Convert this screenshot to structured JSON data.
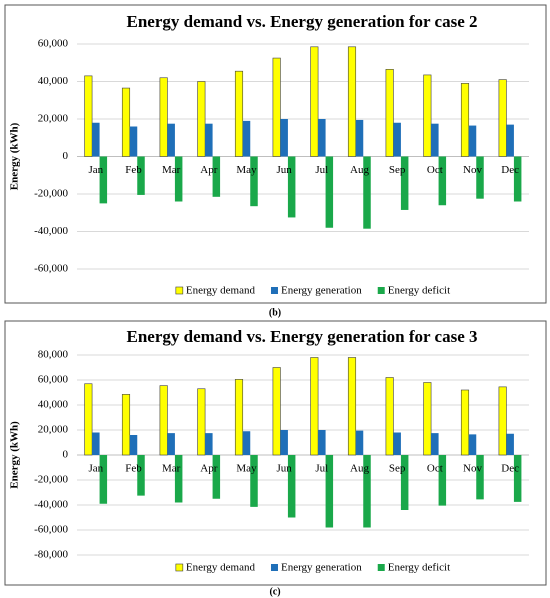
{
  "chart_data": [
    {
      "type": "bar",
      "title": "Energy demand vs. Energy generation for case 2",
      "caption": "(b)",
      "y_label": "Energy (kWh)",
      "categories": [
        "Jan",
        "Feb",
        "Mar",
        "Apr",
        "May",
        "Jun",
        "Jul",
        "Aug",
        "Sep",
        "Oct",
        "Nov",
        "Dec"
      ],
      "series": [
        {
          "name": "Energy demand",
          "color": "#ffff00",
          "values": [
            43000,
            36500,
            42000,
            40000,
            45500,
            52500,
            58500,
            58500,
            46500,
            43500,
            39000,
            41000
          ]
        },
        {
          "name": "Energy generation",
          "color": "#1f6fb8",
          "values": [
            18000,
            16000,
            17500,
            17500,
            19000,
            20000,
            20000,
            19500,
            18000,
            17500,
            16500,
            17000
          ]
        },
        {
          "name": "Energy deficit",
          "color": "#1aa84a",
          "values": [
            -25000,
            -20500,
            -24000,
            -21500,
            -26500,
            -32500,
            -38000,
            -38500,
            -28500,
            -26000,
            -22500,
            -24000
          ]
        }
      ],
      "ylim": [
        -60000,
        60000
      ],
      "yticks": [
        {
          "value": -60000,
          "label": "-60,000"
        },
        {
          "value": -40000,
          "label": "-40,000"
        },
        {
          "value": -20000,
          "label": "-20,000"
        },
        0,
        {
          "value": 20000,
          "label": "20,000"
        },
        {
          "value": 40000,
          "label": "40,000"
        },
        {
          "value": 60000,
          "label": "60,000"
        }
      ],
      "grid": true,
      "legend": "bottom"
    },
    {
      "type": "bar",
      "title": "Energy demand vs. Energy generation for case 3",
      "caption": "(c)",
      "y_label": "Energy (kWh)",
      "categories": [
        "Jan",
        "Feb",
        "Mar",
        "Apr",
        "May",
        "Jun",
        "Jul",
        "Aug",
        "Sep",
        "Oct",
        "Nov",
        "Dec"
      ],
      "series": [
        {
          "name": "Energy demand",
          "color": "#ffff00",
          "values": [
            57000,
            48500,
            55500,
            53000,
            60500,
            70000,
            78000,
            78000,
            62000,
            58000,
            52000,
            54500
          ]
        },
        {
          "name": "Energy generation",
          "color": "#1f6fb8",
          "values": [
            18000,
            16000,
            17500,
            17500,
            19000,
            20000,
            20000,
            19500,
            18000,
            17500,
            16500,
            17000
          ]
        },
        {
          "name": "Energy deficit",
          "color": "#1aa84a",
          "values": [
            -39000,
            -32500,
            -38000,
            -35000,
            -41500,
            -50000,
            -58000,
            -58000,
            -44000,
            -40500,
            -35500,
            -37500
          ]
        }
      ],
      "ylim": [
        -80000,
        80000
      ],
      "yticks": [
        {
          "value": -80000,
          "label": "-80,000"
        },
        {
          "value": -60000,
          "label": "-60,000"
        },
        {
          "value": -40000,
          "label": "-40,000"
        },
        {
          "value": -20000,
          "label": "-20,000"
        },
        0,
        {
          "value": 20000,
          "label": "20,000"
        },
        {
          "value": 40000,
          "label": "40,000"
        },
        {
          "value": 60000,
          "label": "60,000"
        },
        {
          "value": 80000,
          "label": "80,000"
        }
      ],
      "grid": true,
      "legend": "bottom"
    }
  ]
}
